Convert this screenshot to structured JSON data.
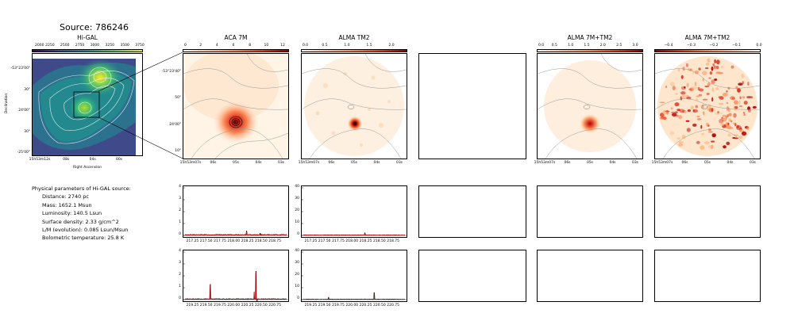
{
  "source_title": "Source: 786246",
  "panels": {
    "higal": {
      "title": "Hi-GAL",
      "cbar_ticks": [
        "2000",
        "2250",
        "2500",
        "2750",
        "3000",
        "3250",
        "3500",
        "3750"
      ],
      "ra_ticks": [
        "15h53m12s",
        "08s",
        "04s",
        "00s"
      ],
      "dec_ticks": [
        "-53°23'00\"",
        "30\"",
        "24'00\"",
        "30\"",
        "-25'00\""
      ],
      "xlabel": "Right Ascension",
      "ylabel": "Declination"
    },
    "aca": {
      "title": "ACA 7M",
      "cbar_ticks": [
        "0",
        "2",
        "4",
        "6",
        "8",
        "10",
        "12"
      ],
      "ra_ticks": [
        "15h53m07s",
        "06s",
        "05s",
        "04s",
        "03s"
      ],
      "dec_ticks": [
        "-53°23'40\"",
        "50\"",
        "24'00\"",
        "10\""
      ]
    },
    "tm2": {
      "title": "ALMA TM2",
      "cbar_ticks": [
        "0.0",
        "0.5",
        "1.0",
        "1.5",
        "2.0"
      ],
      "ra_ticks": [
        "15h53m07s",
        "06s",
        "05s",
        "04s",
        "03s"
      ]
    },
    "comb": {
      "title": "ALMA 7M+TM2",
      "cbar_ticks": [
        "0.0",
        "0.5",
        "1.0",
        "1.5",
        "2.0",
        "2.5",
        "3.0"
      ],
      "ra_ticks": [
        "15h53m07s",
        "06s",
        "05s",
        "04s",
        "03s"
      ]
    },
    "resid": {
      "title": "ALMA 7M+TM2",
      "cbar_ticks": [
        "−0.4",
        "−0.3",
        "−0.2",
        "−0.1",
        "0.0"
      ],
      "ra_ticks": [
        "15h53m07s",
        "06s",
        "05s",
        "04s",
        "03s"
      ]
    }
  },
  "info": {
    "heading": "Physical parameters of Hi-GAL source:",
    "lines": [
      "Distance: 2740 pc",
      "Mass: 1652.1 Msun",
      "Luminosity: 140.5 Lsun",
      "Surface density: 2.33 g/cm^2",
      "L/M (evolution): 0.085 Lsun/Msun",
      "Bolometric temperature: 25.8 K"
    ]
  },
  "chart_data": [
    {
      "type": "line",
      "panel": "spec1-aca",
      "xlim": [
        217.1,
        218.95
      ],
      "ylim": [
        0,
        40
      ],
      "x_ticks": [
        "217.25",
        "217.50",
        "217.75",
        "218.00",
        "218.25",
        "218.50",
        "218.75"
      ],
      "y_ticks": [
        "0",
        "1",
        "2",
        "3",
        "4"
      ],
      "baseline": 0.05,
      "peaks": [
        {
          "x": 218.22,
          "y": 0.3
        },
        {
          "x": 218.47,
          "y": 0.12
        }
      ]
    },
    {
      "type": "line",
      "panel": "spec1-tm2",
      "xlim": [
        217.1,
        218.95
      ],
      "ylim": [
        0,
        40
      ],
      "x_ticks": [
        "217.25",
        "217.50",
        "217.75",
        "218.00",
        "218.25",
        "218.50",
        "218.75"
      ],
      "y_ticks": [
        "0",
        "10",
        "20",
        "30",
        "40"
      ],
      "baseline": 0.3,
      "peaks": [
        {
          "x": 218.22,
          "y": 2.0
        }
      ]
    },
    {
      "type": "line",
      "panel": "spec2-aca",
      "xlim": [
        219.1,
        220.95
      ],
      "ylim": [
        0,
        40
      ],
      "x_ticks": [
        "219.25",
        "219.50",
        "219.75",
        "220.00",
        "220.25",
        "220.50",
        "220.75"
      ],
      "y_ticks": [
        "0",
        "1",
        "2",
        "3",
        "4"
      ],
      "baseline": 0.05,
      "peaks": [
        {
          "x": 219.56,
          "y": 1.2
        },
        {
          "x": 220.39,
          "y": 2.3
        },
        {
          "x": 220.36,
          "y": 0.6
        },
        {
          "x": 220.41,
          "y": -0.4
        }
      ]
    },
    {
      "type": "line",
      "panel": "spec2-tm2",
      "xlim": [
        219.1,
        220.95
      ],
      "ylim": [
        0,
        40
      ],
      "x_ticks": [
        "219.25",
        "219.50",
        "219.75",
        "220.00",
        "220.25",
        "220.50",
        "220.75"
      ],
      "y_ticks": [
        "0",
        "10",
        "20",
        "30",
        "40"
      ],
      "baseline": 0.3,
      "peaks": [
        {
          "x": 219.56,
          "y": 1.5
        },
        {
          "x": 220.39,
          "y": 5.8
        }
      ]
    }
  ]
}
